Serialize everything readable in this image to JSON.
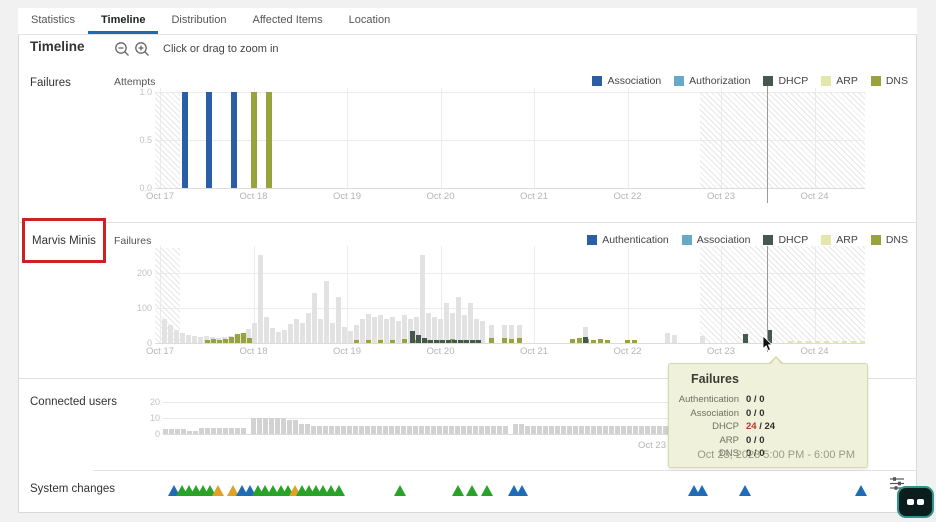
{
  "tabs": [
    {
      "label": "Statistics",
      "active": false
    },
    {
      "label": "Timeline",
      "active": true
    },
    {
      "label": "Distribution",
      "active": false
    },
    {
      "label": "Affected Items",
      "active": false
    },
    {
      "label": "Location",
      "active": false
    }
  ],
  "header": {
    "title": "Timeline",
    "zoom_hint": "Click or drag to zoom in"
  },
  "sections": {
    "failures_label": "Failures",
    "marvis_label": "Marvis Minis",
    "users_label": "Connected users",
    "system_label": "System changes"
  },
  "colors": {
    "tab_accent": "#2069b2",
    "dark_blue": "#2a5ea6",
    "light_blue": "#68a9c9",
    "dhcp_teal": "#44584e",
    "arp_pale": "#e4e6ac",
    "dns_olive": "#98a33d",
    "gray_bar": "#e2e2e2",
    "users_bar": "#d2d2d2",
    "annotation_red": "#cd2123",
    "crosshair": "#9a9a9a",
    "marker_green": "#28a228",
    "marker_blue": "#1f6cb5",
    "marker_orange": "#dfa128",
    "marker_olive": "#98a33d",
    "tooltip_bg": "#eff1da",
    "value_red": "#b5382c"
  },
  "chart_data": {
    "attempts": {
      "type": "bar",
      "axis_label": "Attempts",
      "legend": [
        {
          "label": "Association",
          "color": "#2a5ea6"
        },
        {
          "label": "Authorization",
          "color": "#68a9c9"
        },
        {
          "label": "DHCP",
          "color": "#44584e"
        },
        {
          "label": "ARP",
          "color": "#e4e6ac"
        },
        {
          "label": "DNS",
          "color": "#98a33d"
        }
      ],
      "y_ticks": [
        "1.0",
        "0.5",
        "0.0"
      ],
      "ylim": [
        0,
        1
      ],
      "x_ticks": [
        "Oct 17",
        "Oct 18",
        "Oct 19",
        "Oct 20",
        "Oct 21",
        "Oct 22",
        "Oct 23",
        "Oct 24"
      ],
      "bars": [
        {
          "x": 27,
          "v": 1.0,
          "series": "Association"
        },
        {
          "x": 51,
          "v": 1.0,
          "series": "Association"
        },
        {
          "x": 76,
          "v": 1.0,
          "series": "Association"
        },
        {
          "x": 96,
          "v": 1.0,
          "series": "DNS"
        },
        {
          "x": 111,
          "v": 1.0,
          "series": "DNS"
        }
      ]
    },
    "marvis": {
      "type": "bar",
      "axis_label": "Failures",
      "legend": [
        {
          "label": "Authentication",
          "color": "#2a5ea6"
        },
        {
          "label": "Association",
          "color": "#68a9c9"
        },
        {
          "label": "DHCP",
          "color": "#44584e"
        },
        {
          "label": "ARP",
          "color": "#e4e6ac"
        },
        {
          "label": "DNS",
          "color": "#98a33d"
        }
      ],
      "y_ticks": [
        "200",
        "100",
        "0"
      ],
      "ylim": [
        0,
        260
      ],
      "x_ticks": [
        "Oct 17",
        "Oct 18",
        "Oct 19",
        "Oct 20",
        "Oct 21",
        "Oct 22",
        "Oct 23",
        "Oct 24"
      ],
      "gray": [
        [
          7,
          66
        ],
        [
          13,
          49
        ],
        [
          19,
          36
        ],
        [
          25,
          27
        ],
        [
          31,
          22
        ],
        [
          37,
          18
        ],
        [
          43,
          16
        ],
        [
          49,
          20
        ],
        [
          55,
          16
        ],
        [
          61,
          13
        ],
        [
          67,
          16
        ],
        [
          73,
          19
        ],
        [
          79,
          22
        ],
        [
          85,
          27
        ],
        [
          91,
          38
        ],
        [
          97,
          55
        ],
        [
          103,
          240
        ],
        [
          109,
          70
        ],
        [
          115,
          41
        ],
        [
          121,
          30
        ],
        [
          127,
          36
        ],
        [
          133,
          52
        ],
        [
          139,
          66
        ],
        [
          145,
          55
        ],
        [
          151,
          82
        ],
        [
          157,
          137
        ],
        [
          163,
          66
        ],
        [
          169,
          170
        ],
        [
          175,
          55
        ],
        [
          181,
          126
        ],
        [
          187,
          44
        ],
        [
          193,
          33
        ],
        [
          199,
          49
        ],
        [
          205,
          66
        ],
        [
          211,
          80
        ],
        [
          217,
          70
        ],
        [
          223,
          77
        ],
        [
          229,
          66
        ],
        [
          235,
          71
        ],
        [
          241,
          60
        ],
        [
          247,
          77
        ],
        [
          253,
          66
        ],
        [
          259,
          71
        ],
        [
          265,
          240
        ],
        [
          271,
          82
        ],
        [
          277,
          71
        ],
        [
          283,
          66
        ],
        [
          289,
          110
        ],
        [
          295,
          82
        ],
        [
          301,
          126
        ],
        [
          307,
          77
        ],
        [
          313,
          110
        ],
        [
          319,
          66
        ],
        [
          325,
          60
        ],
        [
          334,
          49
        ],
        [
          347,
          49
        ],
        [
          354,
          49
        ],
        [
          362,
          49
        ],
        [
          428,
          44
        ],
        [
          510,
          27
        ],
        [
          517,
          22
        ],
        [
          545,
          19
        ]
      ],
      "dns": [
        [
          50,
          8
        ],
        [
          56,
          11
        ],
        [
          62,
          8
        ],
        [
          68,
          11
        ],
        [
          74,
          16
        ],
        [
          80,
          25
        ],
        [
          86,
          27
        ],
        [
          92,
          14
        ],
        [
          199,
          8
        ],
        [
          211,
          8
        ],
        [
          223,
          8
        ],
        [
          235,
          8
        ],
        [
          247,
          11
        ],
        [
          259,
          8
        ],
        [
          271,
          8
        ],
        [
          283,
          8
        ],
        [
          295,
          11
        ],
        [
          307,
          8
        ],
        [
          319,
          8
        ],
        [
          334,
          14
        ],
        [
          347,
          14
        ],
        [
          354,
          11
        ],
        [
          362,
          14
        ],
        [
          415,
          11
        ],
        [
          422,
          14
        ],
        [
          429,
          11
        ],
        [
          436,
          8
        ],
        [
          443,
          11
        ],
        [
          450,
          8
        ],
        [
          470,
          8
        ],
        [
          477,
          8
        ]
      ],
      "dhcp": [
        [
          255,
          33
        ],
        [
          261,
          22
        ],
        [
          267,
          14
        ],
        [
          273,
          8
        ],
        [
          279,
          8
        ],
        [
          285,
          8
        ],
        [
          291,
          8
        ],
        [
          297,
          8
        ],
        [
          303,
          8
        ],
        [
          309,
          8
        ],
        [
          315,
          8
        ],
        [
          321,
          8
        ],
        [
          428,
          16
        ],
        [
          588,
          25
        ],
        [
          612,
          36
        ]
      ],
      "arp": [
        [
          633,
          5
        ],
        [
          642,
          5
        ],
        [
          651,
          5
        ],
        [
          660,
          5
        ],
        [
          669,
          5
        ],
        [
          678,
          5
        ],
        [
          687,
          5
        ],
        [
          696,
          5
        ],
        [
          705,
          5
        ]
      ]
    },
    "users": {
      "type": "bar",
      "y_ticks": [
        "20",
        "10",
        "0"
      ],
      "ylim": [
        0,
        20
      ],
      "x_tick_visible": "Oct 23",
      "segments": [
        {
          "from": 0,
          "to": 18,
          "v": 3
        },
        {
          "from": 24,
          "to": 30,
          "v": 2
        },
        {
          "from": 36,
          "to": 82,
          "v": 3.5
        },
        {
          "from": 88,
          "to": 118,
          "v": 10
        },
        {
          "from": 124,
          "to": 130,
          "v": 9
        },
        {
          "from": 136,
          "to": 142,
          "v": 6
        },
        {
          "from": 148,
          "to": 344,
          "v": 5
        },
        {
          "from": 350,
          "to": 356,
          "v": 6
        },
        {
          "from": 362,
          "to": 600,
          "v": 5
        }
      ]
    }
  },
  "tooltip": {
    "title": "Failures",
    "rows": [
      {
        "label": "Authentication",
        "a": "0",
        "b": "0",
        "red": false
      },
      {
        "label": "Association",
        "a": "0",
        "b": "0",
        "red": false
      },
      {
        "label": "DHCP",
        "a": "24",
        "b": "24",
        "red": true
      },
      {
        "label": "ARP",
        "a": "0",
        "b": "0",
        "red": false
      },
      {
        "label": "DNS",
        "a": "0",
        "b": "0",
        "red": false
      }
    ],
    "footer": "Oct 23, 2023 5:00 PM - 6:00 PM"
  },
  "system_changes": {
    "markers": [
      [
        174,
        "b"
      ],
      [
        182,
        "g"
      ],
      [
        189,
        "g"
      ],
      [
        196,
        "g"
      ],
      [
        203,
        "g"
      ],
      [
        210,
        "g"
      ],
      [
        218,
        "o"
      ],
      [
        233,
        "o"
      ],
      [
        242,
        "b"
      ],
      [
        250,
        "b"
      ],
      [
        258,
        "g"
      ],
      [
        265,
        "g"
      ],
      [
        273,
        "g"
      ],
      [
        281,
        "g"
      ],
      [
        288,
        "g"
      ],
      [
        295,
        "o"
      ],
      [
        302,
        "g"
      ],
      [
        309,
        "g"
      ],
      [
        316,
        "g"
      ],
      [
        323,
        "g"
      ],
      [
        331,
        "g"
      ],
      [
        339,
        "g"
      ],
      [
        400,
        "g"
      ],
      [
        458,
        "g"
      ],
      [
        472,
        "g"
      ],
      [
        487,
        "g"
      ],
      [
        514,
        "b"
      ],
      [
        522,
        "b"
      ],
      [
        694,
        "b"
      ],
      [
        702,
        "b"
      ],
      [
        745,
        "b"
      ],
      [
        861,
        "b"
      ]
    ]
  }
}
